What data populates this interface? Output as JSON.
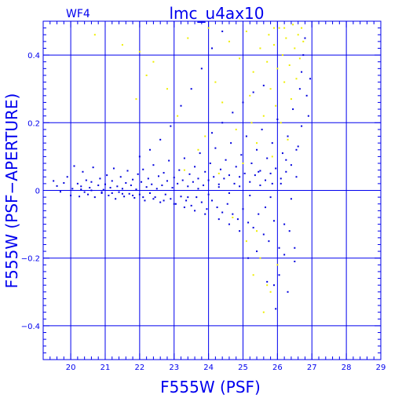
{
  "chart_data": {
    "type": "scatter",
    "title": "lmc_u4ax10",
    "panel_label": "WF4",
    "xlabel": "F555W (PSF)",
    "ylabel": "F555W (PSF−APERTURE)",
    "xlim": [
      19.2,
      29.0
    ],
    "ylim": [
      -0.5,
      0.5
    ],
    "xticks": [
      20,
      21,
      22,
      23,
      24,
      25,
      26,
      27,
      28,
      29
    ],
    "yticks": [
      -0.4,
      -0.2,
      0,
      0.2,
      0.4
    ],
    "ytick_labels": [
      "−0.4",
      "−0.2",
      "0",
      "0.2",
      "0.4"
    ],
    "grid": true,
    "colors": {
      "axes": "#0000ee",
      "series_blue": "#0000dd",
      "series_yellow": "#eeee00"
    },
    "series": [
      {
        "color_key": "series_blue",
        "points": [
          [
            19.5,
            0.028
          ],
          [
            19.6,
            0.013
          ],
          [
            19.7,
            -0.004
          ],
          [
            19.8,
            0.022
          ],
          [
            19.9,
            0.04
          ],
          [
            20.0,
            -0.015
          ],
          [
            20.05,
            0.005
          ],
          [
            20.1,
            0.072
          ],
          [
            20.2,
            0.02
          ],
          [
            20.25,
            -0.018
          ],
          [
            20.3,
            0.012
          ],
          [
            20.35,
            0.055
          ],
          [
            20.4,
            -0.005
          ],
          [
            20.45,
            0.03
          ],
          [
            20.5,
            -0.012
          ],
          [
            20.55,
            0.008
          ],
          [
            20.6,
            0.025
          ],
          [
            20.65,
            0.068
          ],
          [
            20.7,
            -0.02
          ],
          [
            20.8,
            0.015
          ],
          [
            20.85,
            0.035
          ],
          [
            20.9,
            -0.008
          ],
          [
            20.95,
            0.002
          ],
          [
            21.0,
            0.018
          ],
          [
            21.05,
            0.045
          ],
          [
            21.1,
            -0.015
          ],
          [
            21.15,
            0.008
          ],
          [
            21.2,
            0.028
          ],
          [
            21.25,
            0.065
          ],
          [
            21.3,
            -0.025
          ],
          [
            21.35,
            0.012
          ],
          [
            21.4,
            -0.005
          ],
          [
            21.45,
            0.04
          ],
          [
            21.5,
            0.005
          ],
          [
            21.55,
            -0.018
          ],
          [
            21.6,
            0.022
          ],
          [
            21.65,
            0.058
          ],
          [
            21.7,
            -0.01
          ],
          [
            21.75,
            0.015
          ],
          [
            21.8,
            0.032
          ],
          [
            21.85,
            -0.022
          ],
          [
            21.9,
            0.003
          ],
          [
            21.95,
            0.048
          ],
          [
            22.0,
            -0.012
          ],
          [
            22.05,
            0.025
          ],
          [
            22.1,
            0.062
          ],
          [
            22.15,
            -0.03
          ],
          [
            22.2,
            0.01
          ],
          [
            22.25,
            0.035
          ],
          [
            22.3,
            -0.008
          ],
          [
            22.35,
            0.018
          ],
          [
            22.4,
            0.075
          ],
          [
            22.45,
            -0.02
          ],
          [
            22.5,
            0.005
          ],
          [
            22.55,
            0.042
          ],
          [
            22.6,
            -0.035
          ],
          [
            22.65,
            0.015
          ],
          [
            22.7,
            0.052
          ],
          [
            22.75,
            -0.012
          ],
          [
            22.8,
            0.028
          ],
          [
            22.85,
            0.088
          ],
          [
            22.9,
            -0.025
          ],
          [
            22.95,
            0.008
          ],
          [
            23.0,
            0.038
          ],
          [
            23.05,
            -0.04
          ],
          [
            23.1,
            0.02
          ],
          [
            23.15,
            0.06
          ],
          [
            23.2,
            -0.018
          ],
          [
            23.25,
            0.03
          ],
          [
            23.3,
            0.095
          ],
          [
            23.35,
            -0.03
          ],
          [
            23.4,
            0.012
          ],
          [
            23.45,
            0.048
          ],
          [
            23.5,
            -0.045
          ],
          [
            23.55,
            0.025
          ],
          [
            23.6,
            0.07
          ],
          [
            23.65,
            -0.02
          ],
          [
            23.7,
            0.035
          ],
          [
            23.75,
            0.11
          ],
          [
            23.8,
            -0.035
          ],
          [
            23.85,
            0.015
          ],
          [
            23.9,
            0.055
          ],
          [
            23.95,
            -0.055
          ],
          [
            24.0,
            0.03
          ],
          [
            24.05,
            0.08
          ],
          [
            24.1,
            -0.03
          ],
          [
            24.15,
            0.04
          ],
          [
            24.2,
            0.125
          ],
          [
            24.25,
            -0.05
          ],
          [
            24.3,
            0.018
          ],
          [
            24.35,
            0.062
          ],
          [
            24.4,
            -0.065
          ],
          [
            24.45,
            0.035
          ],
          [
            24.5,
            0.09
          ],
          [
            24.55,
            -0.04
          ],
          [
            24.6,
            0.045
          ],
          [
            24.65,
            0.14
          ],
          [
            24.7,
            -0.07
          ],
          [
            24.75,
            0.02
          ],
          [
            24.8,
            0.07
          ],
          [
            24.85,
            -0.085
          ],
          [
            24.9,
            0.04
          ],
          [
            24.95,
            0.105
          ],
          [
            25.0,
            -0.055
          ],
          [
            25.05,
            0.05
          ],
          [
            25.1,
            0.16
          ],
          [
            25.15,
            -0.095
          ],
          [
            25.2,
            0.025
          ],
          [
            25.25,
            0.08
          ],
          [
            25.3,
            -0.11
          ],
          [
            25.35,
            0.045
          ],
          [
            25.4,
            0.12
          ],
          [
            25.45,
            -0.07
          ],
          [
            25.5,
            0.058
          ],
          [
            25.55,
            0.18
          ],
          [
            25.6,
            -0.13
          ],
          [
            25.65,
            0.03
          ],
          [
            25.7,
            0.095
          ],
          [
            25.75,
            -0.15
          ],
          [
            25.8,
            0.05
          ],
          [
            25.85,
            0.14
          ],
          [
            25.9,
            -0.09
          ],
          [
            25.95,
            0.065
          ],
          [
            26.0,
            0.21
          ],
          [
            26.05,
            -0.17
          ],
          [
            26.1,
            0.035
          ],
          [
            26.15,
            0.11
          ],
          [
            26.2,
            -0.19
          ],
          [
            26.25,
            0.055
          ],
          [
            26.3,
            0.16
          ],
          [
            26.35,
            -0.12
          ],
          [
            26.4,
            0.075
          ],
          [
            26.45,
            0.24
          ],
          [
            26.5,
            -0.21
          ],
          [
            26.55,
            0.04
          ],
          [
            26.6,
            0.13
          ],
          [
            26.65,
            0.3
          ],
          [
            26.7,
            0.35
          ],
          [
            26.75,
            0.4
          ],
          [
            26.8,
            0.45
          ],
          [
            26.85,
            0.28
          ],
          [
            26.9,
            0.22
          ],
          [
            26.95,
            0.33
          ],
          [
            25.9,
            -0.28
          ],
          [
            26.05,
            -0.25
          ],
          [
            26.3,
            -0.3
          ],
          [
            25.4,
            -0.18
          ],
          [
            25.15,
            -0.2
          ],
          [
            24.9,
            -0.12
          ],
          [
            24.6,
            -0.1
          ],
          [
            24.3,
            -0.085
          ],
          [
            23.9,
            -0.07
          ],
          [
            23.6,
            -0.06
          ],
          [
            23.3,
            -0.05
          ],
          [
            23.0,
            -0.04
          ],
          [
            22.7,
            -0.03
          ],
          [
            22.4,
            -0.025
          ],
          [
            22.1,
            -0.02
          ],
          [
            21.8,
            -0.015
          ],
          [
            21.5,
            -0.01
          ],
          [
            21.2,
            -0.008
          ],
          [
            20.9,
            -0.005
          ],
          [
            20.6,
            0.0
          ],
          [
            20.3,
            0.003
          ],
          [
            24.1,
            0.17
          ],
          [
            24.4,
            0.2
          ],
          [
            24.7,
            0.23
          ],
          [
            25.0,
            0.26
          ],
          [
            25.3,
            0.29
          ],
          [
            25.6,
            0.31
          ],
          [
            23.2,
            0.25
          ],
          [
            23.5,
            0.3
          ],
          [
            23.8,
            0.36
          ],
          [
            24.1,
            0.42
          ],
          [
            24.4,
            0.47
          ],
          [
            22.9,
            0.19
          ],
          [
            22.6,
            0.15
          ],
          [
            22.3,
            0.12
          ],
          [
            22.0,
            0.1
          ],
          [
            23.4,
            -0.02
          ],
          [
            23.7,
            0.005
          ],
          [
            24.0,
            -0.012
          ],
          [
            24.3,
            0.01
          ],
          [
            24.6,
            -0.008
          ],
          [
            24.9,
            0.012
          ],
          [
            25.2,
            -0.015
          ],
          [
            25.5,
            0.015
          ],
          [
            25.8,
            -0.02
          ],
          [
            26.1,
            0.02
          ],
          [
            26.4,
            -0.025
          ],
          [
            25.95,
            -0.35
          ],
          [
            25.7,
            -0.27
          ],
          [
            26.5,
            -0.17
          ],
          [
            26.2,
            -0.1
          ],
          [
            25.65,
            -0.05
          ],
          [
            25.85,
            0.02
          ],
          [
            25.45,
            0.055
          ],
          [
            26.25,
            0.09
          ],
          [
            26.55,
            0.12
          ],
          [
            26.7,
            0.19
          ]
        ]
      },
      {
        "color_key": "series_yellow",
        "points": [
          [
            20.7,
            0.46
          ],
          [
            21.5,
            0.43
          ],
          [
            22.0,
            0.41
          ],
          [
            22.4,
            0.38
          ],
          [
            22.8,
            0.3
          ],
          [
            23.1,
            0.22
          ],
          [
            23.4,
            0.45
          ],
          [
            23.7,
            0.12
          ],
          [
            24.0,
            0.48
          ],
          [
            24.2,
            0.32
          ],
          [
            24.4,
            0.26
          ],
          [
            24.6,
            0.44
          ],
          [
            24.8,
            0.18
          ],
          [
            24.9,
            0.39
          ],
          [
            25.0,
            0.08
          ],
          [
            25.1,
            0.47
          ],
          [
            25.2,
            0.28
          ],
          [
            25.3,
            0.35
          ],
          [
            25.4,
            0.14
          ],
          [
            25.5,
            0.42
          ],
          [
            25.6,
            0.22
          ],
          [
            25.7,
            0.38
          ],
          [
            25.75,
            0.46
          ],
          [
            25.8,
            0.3
          ],
          [
            25.85,
            0.1
          ],
          [
            25.9,
            0.43
          ],
          [
            25.95,
            0.25
          ],
          [
            26.0,
            0.36
          ],
          [
            26.05,
            0.48
          ],
          [
            26.1,
            0.2
          ],
          [
            26.15,
            0.4
          ],
          [
            26.2,
            0.32
          ],
          [
            26.25,
            0.45
          ],
          [
            26.3,
            0.15
          ],
          [
            26.35,
            0.37
          ],
          [
            26.4,
            0.27
          ],
          [
            26.45,
            0.49
          ],
          [
            26.5,
            0.42
          ],
          [
            26.55,
            0.33
          ],
          [
            26.6,
            0.46
          ],
          [
            26.65,
            0.39
          ],
          [
            26.7,
            0.48
          ],
          [
            26.75,
            0.44
          ],
          [
            25.3,
            -0.25
          ],
          [
            25.5,
            -0.2
          ],
          [
            25.7,
            -0.28
          ],
          [
            25.8,
            -0.3
          ],
          [
            25.6,
            -0.36
          ],
          [
            25.4,
            -0.12
          ],
          [
            26.0,
            -0.22
          ],
          [
            24.7,
            -0.08
          ],
          [
            25.1,
            -0.15
          ],
          [
            24.3,
            0.05
          ],
          [
            23.9,
            0.16
          ],
          [
            25.25,
            0.2
          ],
          [
            25.9,
            0.48
          ],
          [
            26.2,
            0.48
          ],
          [
            23.3,
            0.06
          ],
          [
            22.2,
            0.34
          ],
          [
            21.9,
            0.27
          ]
        ]
      }
    ]
  }
}
